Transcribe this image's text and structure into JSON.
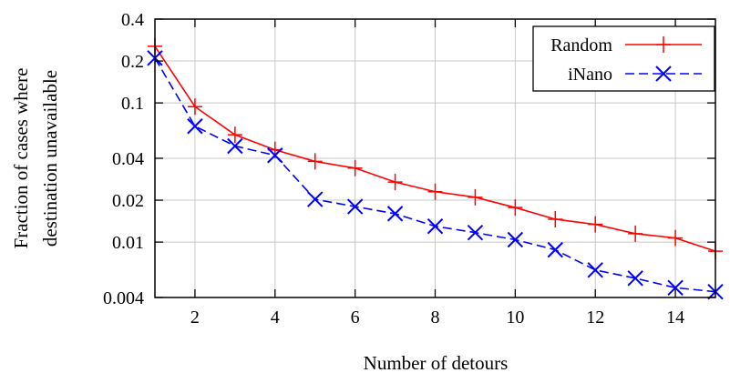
{
  "chart_data": {
    "type": "line",
    "title": "",
    "xlabel": "Number of detours",
    "ylabel": [
      "Fraction of cases where",
      "destination unavailable"
    ],
    "xlim": [
      1,
      15
    ],
    "ylim": [
      0.004,
      0.4
    ],
    "yscale": "log",
    "grid": true,
    "legend_position": "top-right",
    "xticks": [
      2,
      4,
      6,
      8,
      10,
      12,
      14
    ],
    "yticks": [
      0.004,
      0.01,
      0.02,
      0.04,
      0.1,
      0.2,
      0.4
    ],
    "ytick_labels": [
      "0.004",
      "0.01",
      "0.02",
      "0.04",
      "0.1",
      "0.2",
      "0.4"
    ],
    "x": [
      1,
      2,
      3,
      4,
      5,
      6,
      7,
      8,
      9,
      10,
      11,
      12,
      13,
      14,
      15
    ],
    "series": [
      {
        "name": "Random",
        "color": "#ff0000",
        "marker": "plus",
        "linestyle": "solid",
        "values": [
          0.255,
          0.094,
          0.059,
          0.046,
          0.038,
          0.034,
          0.027,
          0.023,
          0.021,
          0.0177,
          0.0146,
          0.0134,
          0.0115,
          0.0107,
          0.0086
        ]
      },
      {
        "name": "iNano",
        "color": "#0000ff",
        "marker": "x",
        "linestyle": "dashed",
        "values": [
          0.21,
          0.068,
          0.049,
          0.042,
          0.0203,
          0.018,
          0.016,
          0.013,
          0.0117,
          0.0104,
          0.0088,
          0.0063,
          0.0055,
          0.0047,
          0.0044
        ]
      }
    ]
  }
}
